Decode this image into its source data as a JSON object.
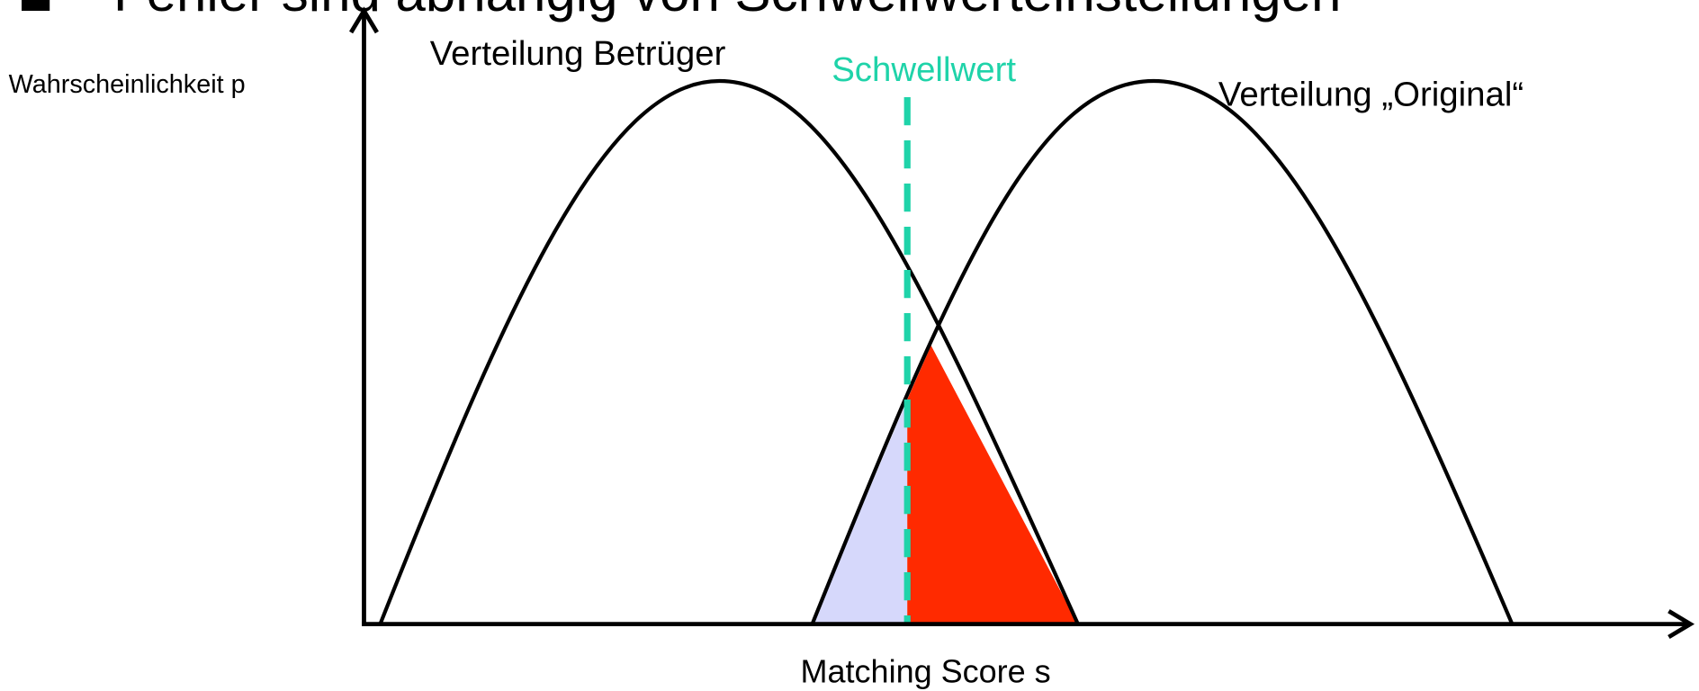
{
  "title": "Fehler sind abhängig von Schwellwerteinstellungen",
  "labels": {
    "y_axis": "Wahrscheinlichkeit p",
    "x_axis": "Matching Score s",
    "impostor": "Verteilung Betrüger",
    "genuine": "Verteilung „Original“",
    "threshold": "Schwellwert"
  }
}
